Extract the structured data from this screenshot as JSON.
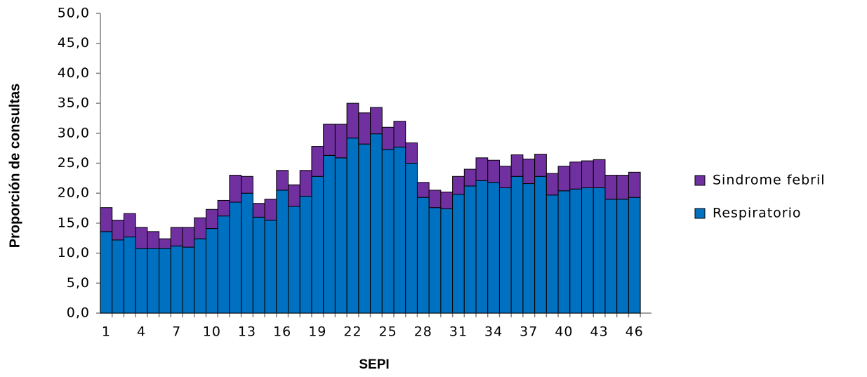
{
  "chart_data": {
    "type": "stacked_bar",
    "y_label": "Proporción de consultas",
    "x_label": "SEPI",
    "categories": [
      "1",
      null,
      null,
      "4",
      null,
      null,
      "7",
      null,
      null,
      "10",
      null,
      null,
      "13",
      null,
      null,
      "16",
      null,
      null,
      "19",
      null,
      null,
      "22",
      null,
      null,
      "25",
      null,
      null,
      "28",
      null,
      null,
      "31",
      null,
      null,
      "34",
      null,
      null,
      "37",
      null,
      null,
      "40",
      null,
      null,
      "43",
      null,
      null,
      "46"
    ],
    "series": [
      {
        "name": "Respiratorio",
        "color": "#0070c0",
        "values": [
          13.6,
          12.2,
          12.7,
          10.8,
          10.8,
          10.8,
          11.2,
          11.0,
          12.4,
          14.1,
          16.2,
          18.5,
          20.0,
          16.0,
          15.5,
          20.5,
          17.8,
          19.5,
          22.8,
          26.3,
          25.9,
          29.2,
          28.2,
          29.9,
          27.3,
          27.7,
          25.0,
          19.3,
          17.6,
          17.4,
          19.8,
          21.2,
          22.1,
          21.8,
          20.9,
          22.8,
          21.6,
          22.8,
          19.7,
          20.4,
          20.7,
          20.9,
          20.9,
          19.0,
          19.0,
          19.3
        ]
      },
      {
        "name": "Sindrome febril",
        "color": "#7030a0",
        "values": [
          4.0,
          3.3,
          3.9,
          3.5,
          2.8,
          1.6,
          3.1,
          3.3,
          3.5,
          3.2,
          2.6,
          4.5,
          2.8,
          2.3,
          3.5,
          3.3,
          3.6,
          4.3,
          5.0,
          5.2,
          5.6,
          5.8,
          5.2,
          4.4,
          3.7,
          4.3,
          3.4,
          2.5,
          2.9,
          2.8,
          3.0,
          2.8,
          3.8,
          3.7,
          3.6,
          3.6,
          4.1,
          3.7,
          3.6,
          4.1,
          4.5,
          4.5,
          4.7,
          4.0,
          4.0,
          4.2
        ]
      }
    ],
    "ylim": [
      0,
      50
    ],
    "yticks": [
      {
        "value": 0,
        "label": "0,0"
      },
      {
        "value": 5,
        "label": "5,0"
      },
      {
        "value": 10,
        "label": "10,0"
      },
      {
        "value": 15,
        "label": "15,0"
      },
      {
        "value": 20,
        "label": "20,0"
      },
      {
        "value": 25,
        "label": "25,0"
      },
      {
        "value": 30,
        "label": "30,0"
      },
      {
        "value": 35,
        "label": "35,0"
      },
      {
        "value": 40,
        "label": "40,0"
      },
      {
        "value": 45,
        "label": "45,0"
      },
      {
        "value": 50,
        "label": "50,0"
      }
    ],
    "legend": "right"
  }
}
